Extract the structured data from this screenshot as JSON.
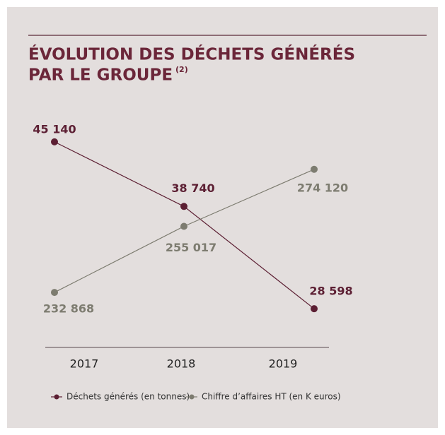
{
  "chart_data": {
    "type": "line",
    "title": [
      "ÉVOLUTION DES DÉCHETS GÉNÉRÉS",
      "PAR LE GROUPE"
    ],
    "title_note": "(2)",
    "categories": [
      "2017",
      "2018",
      "2019"
    ],
    "ylim": [
      27000,
      48000
    ],
    "y2lim": [
      222000,
      293000
    ],
    "series": [
      {
        "name": "Déchets générés (en tonnes)",
        "color": "#5c1f33",
        "values": [
          45140,
          38740,
          28598
        ],
        "value_labels": [
          "45 140",
          "38 740",
          "28 598"
        ]
      },
      {
        "name": "Chiffre d’affaires HT (en K euros)",
        "color": "#7d7c70",
        "axis": "y2",
        "values": [
          232868,
          255017,
          274120
        ],
        "value_labels": [
          "232 868",
          "255 017",
          "274 120"
        ]
      }
    ]
  }
}
